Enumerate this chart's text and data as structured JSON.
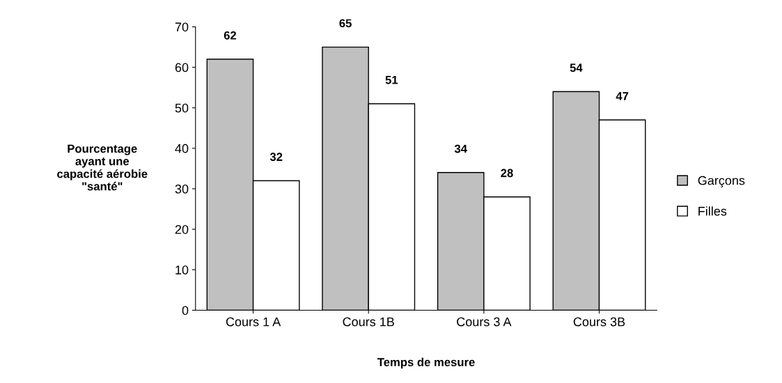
{
  "chart_data": {
    "type": "bar",
    "xlabel": "Temps de mesure",
    "ylabel": "Pourcentage\nayant une\ncapacité aérobie\n\"santé\"",
    "categories": [
      "Cours 1 A",
      "Cours 1B",
      "Cours 3 A",
      "Cours 3B"
    ],
    "series": [
      {
        "name": "Garçons",
        "color": "#c0c0c0",
        "values": [
          62,
          65,
          34,
          54
        ]
      },
      {
        "name": "Filles",
        "color": "#ffffff",
        "values": [
          32,
          51,
          28,
          47
        ]
      }
    ],
    "ylim": [
      0,
      70
    ],
    "yticks": [
      0,
      10,
      20,
      30,
      40,
      50,
      60,
      70
    ],
    "grid": false,
    "legend": "right",
    "data_labels": true
  }
}
